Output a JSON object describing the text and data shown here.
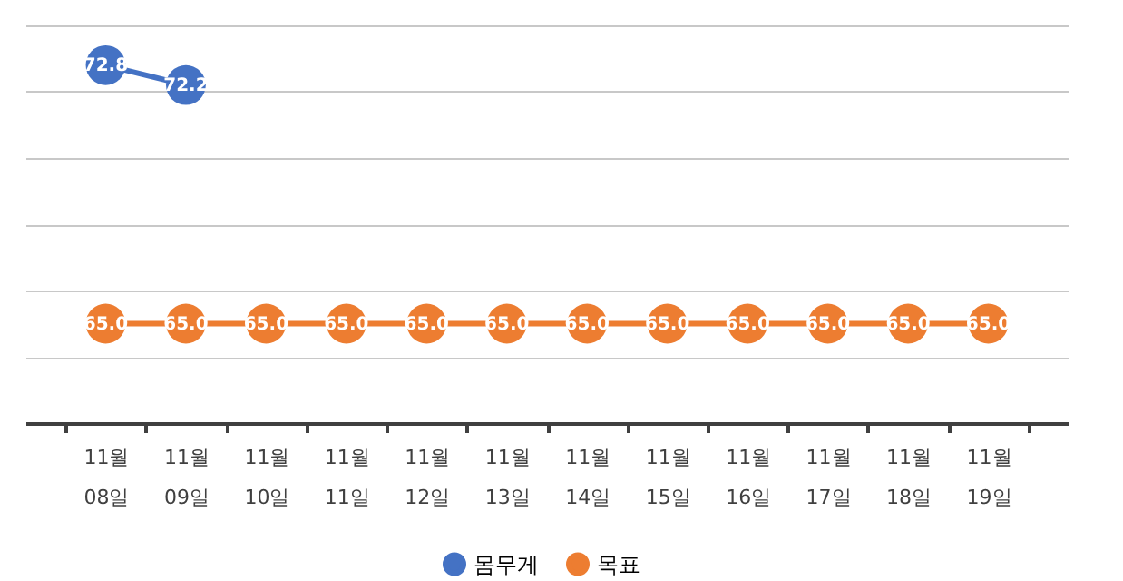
{
  "chart_data": {
    "type": "line",
    "categories": [
      "11월 08일",
      "11월 09일",
      "11월 10일",
      "11월 11일",
      "11월 12일",
      "11월 13일",
      "11월 14일",
      "11월 15일",
      "11월 16일",
      "11월 17일",
      "11월 18일",
      "11월 19일"
    ],
    "series": [
      {
        "name": "몸무게",
        "color": "#4472c4",
        "values": [
          72.8,
          72.2,
          null,
          null,
          null,
          null,
          null,
          null,
          null,
          null,
          null,
          null
        ],
        "value_labels": [
          "72.8",
          "72.2",
          null,
          null,
          null,
          null,
          null,
          null,
          null,
          null,
          null,
          null
        ]
      },
      {
        "name": "목표",
        "color": "#ed7d31",
        "values": [
          65.0,
          65.0,
          65.0,
          65.0,
          65.0,
          65.0,
          65.0,
          65.0,
          65.0,
          65.0,
          65.0,
          65.0
        ],
        "value_labels": [
          "65.0",
          "65.0",
          "65.0",
          "65.0",
          "65.0",
          "65.0",
          "65.0",
          "65.0",
          "65.0",
          "65.0",
          "65.0",
          "65.0"
        ]
      }
    ],
    "ylim": [
      62,
      74
    ],
    "yticks": [
      {
        "value": 62,
        "label": null
      },
      {
        "value": 64,
        "label": null
      },
      {
        "value": 66,
        "label": null
      },
      {
        "value": 68,
        "label": null
      },
      {
        "value": 70,
        "label": null
      },
      {
        "value": 72,
        "label": null
      },
      {
        "value": 74,
        "label": null
      }
    ],
    "tick_labels": "x",
    "grid": "y",
    "legend": "bottom",
    "marker": "circle",
    "line_style": "solid"
  }
}
